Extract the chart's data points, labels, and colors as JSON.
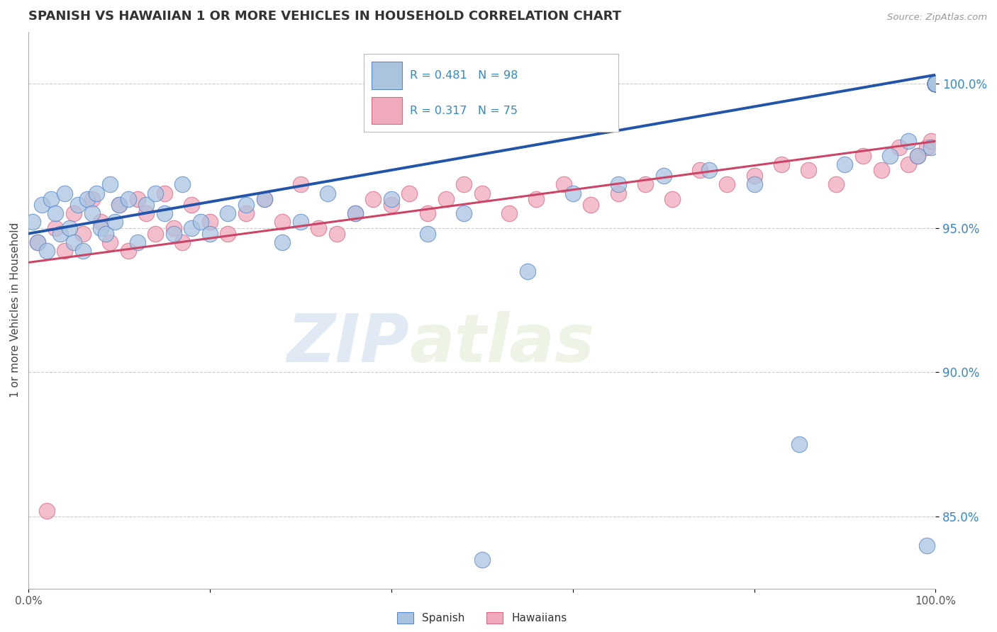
{
  "title": "SPANISH VS HAWAIIAN 1 OR MORE VEHICLES IN HOUSEHOLD CORRELATION CHART",
  "source": "Source: ZipAtlas.com",
  "ylabel": "1 or more Vehicles in Household",
  "ytick_labels": [
    "85.0%",
    "90.0%",
    "95.0%",
    "100.0%"
  ],
  "ytick_values": [
    85.0,
    90.0,
    95.0,
    100.0
  ],
  "xlim": [
    0.0,
    100.0
  ],
  "ylim": [
    82.5,
    101.8
  ],
  "legend_blue_label": "R = 0.481   N = 98",
  "legend_pink_label": "R = 0.317   N = 75",
  "blue_scatter_color": "#aac4e0",
  "blue_edge_color": "#5588cc",
  "blue_line_color": "#2255aa",
  "pink_scatter_color": "#f0aabb",
  "pink_edge_color": "#dd6688",
  "pink_line_color": "#cc4466",
  "watermark_zip": "ZIP",
  "watermark_atlas": "atlas",
  "title_color": "#333333",
  "source_color": "#999999",
  "legend_r_color": "#3388cc",
  "ytick_color": "#3388cc",
  "grid_color": "#cccccc",
  "blue_intercept": 94.8,
  "blue_slope": 0.055,
  "pink_intercept": 93.8,
  "pink_slope": 0.042,
  "spanish_x": [
    0.5,
    1.0,
    1.5,
    2.0,
    2.5,
    3.0,
    3.5,
    4.0,
    4.5,
    5.0,
    5.5,
    6.0,
    6.5,
    7.0,
    7.5,
    8.0,
    8.5,
    9.0,
    9.5,
    10.0,
    11.0,
    12.0,
    13.0,
    14.0,
    15.0,
    16.0,
    17.0,
    18.0,
    19.0,
    20.0,
    22.0,
    24.0,
    26.0,
    28.0,
    30.0,
    33.0,
    36.0,
    40.0,
    44.0,
    48.0,
    50.0,
    55.0,
    60.0,
    65.0,
    70.0,
    75.0,
    80.0,
    85.0,
    90.0,
    95.0,
    97.0,
    98.0,
    99.0,
    99.5,
    100.0,
    100.0,
    100.0,
    100.0,
    100.0,
    100.0,
    100.0,
    100.0,
    100.0,
    100.0,
    100.0,
    100.0,
    100.0,
    100.0,
    100.0,
    100.0,
    100.0,
    100.0,
    100.0,
    100.0,
    100.0,
    100.0,
    100.0,
    100.0,
    100.0,
    100.0,
    100.0,
    100.0,
    100.0,
    100.0,
    100.0,
    100.0,
    100.0,
    100.0,
    100.0,
    100.0,
    100.0,
    100.0,
    100.0,
    100.0,
    100.0,
    100.0,
    100.0,
    100.0
  ],
  "spanish_y": [
    95.2,
    94.5,
    95.8,
    94.2,
    96.0,
    95.5,
    94.8,
    96.2,
    95.0,
    94.5,
    95.8,
    94.2,
    96.0,
    95.5,
    96.2,
    95.0,
    94.8,
    96.5,
    95.2,
    95.8,
    96.0,
    94.5,
    95.8,
    96.2,
    95.5,
    94.8,
    96.5,
    95.0,
    95.2,
    94.8,
    95.5,
    95.8,
    96.0,
    94.5,
    95.2,
    96.2,
    95.5,
    96.0,
    94.8,
    95.5,
    83.5,
    93.5,
    96.2,
    96.5,
    96.8,
    97.0,
    96.5,
    87.5,
    97.2,
    97.5,
    98.0,
    97.5,
    84.0,
    97.8,
    100.0,
    100.0,
    100.0,
    100.0,
    100.0,
    100.0,
    100.0,
    100.0,
    100.0,
    100.0,
    100.0,
    100.0,
    100.0,
    100.0,
    100.0,
    100.0,
    100.0,
    100.0,
    100.0,
    100.0,
    100.0,
    100.0,
    100.0,
    100.0,
    100.0,
    100.0,
    100.0,
    100.0,
    100.0,
    100.0,
    100.0,
    100.0,
    100.0,
    100.0,
    100.0,
    100.0,
    100.0,
    100.0,
    100.0,
    100.0,
    100.0,
    100.0,
    100.0,
    100.0
  ],
  "hawaiian_x": [
    1.0,
    2.0,
    3.0,
    4.0,
    5.0,
    6.0,
    7.0,
    8.0,
    9.0,
    10.0,
    11.0,
    12.0,
    13.0,
    14.0,
    15.0,
    16.0,
    17.0,
    18.0,
    20.0,
    22.0,
    24.0,
    26.0,
    28.0,
    30.0,
    32.0,
    34.0,
    36.0,
    38.0,
    40.0,
    42.0,
    44.0,
    46.0,
    48.0,
    50.0,
    53.0,
    56.0,
    59.0,
    62.0,
    65.0,
    68.0,
    71.0,
    74.0,
    77.0,
    80.0,
    83.0,
    86.0,
    89.0,
    92.0,
    94.0,
    96.0,
    97.0,
    98.0,
    99.0,
    99.5,
    100.0,
    100.0,
    100.0,
    100.0,
    100.0,
    100.0,
    100.0,
    100.0,
    100.0,
    100.0,
    100.0,
    100.0,
    100.0,
    100.0,
    100.0,
    100.0,
    100.0,
    100.0,
    100.0,
    100.0,
    100.0
  ],
  "hawaiian_y": [
    94.5,
    85.2,
    95.0,
    94.2,
    95.5,
    94.8,
    96.0,
    95.2,
    94.5,
    95.8,
    94.2,
    96.0,
    95.5,
    94.8,
    96.2,
    95.0,
    94.5,
    95.8,
    95.2,
    94.8,
    95.5,
    96.0,
    95.2,
    96.5,
    95.0,
    94.8,
    95.5,
    96.0,
    95.8,
    96.2,
    95.5,
    96.0,
    96.5,
    96.2,
    95.5,
    96.0,
    96.5,
    95.8,
    96.2,
    96.5,
    96.0,
    97.0,
    96.5,
    96.8,
    97.2,
    97.0,
    96.5,
    97.5,
    97.0,
    97.8,
    97.2,
    97.5,
    97.8,
    98.0,
    100.0,
    100.0,
    100.0,
    100.0,
    100.0,
    100.0,
    100.0,
    100.0,
    100.0,
    100.0,
    100.0,
    100.0,
    100.0,
    100.0,
    100.0,
    100.0,
    100.0,
    100.0,
    100.0,
    100.0,
    100.0
  ]
}
